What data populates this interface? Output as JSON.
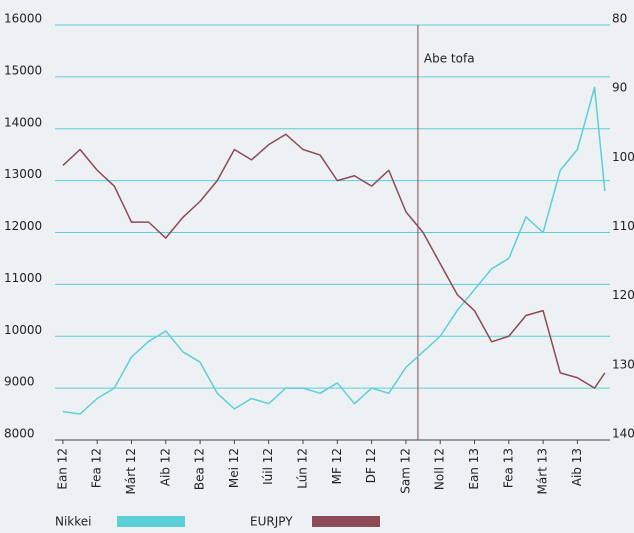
{
  "chart_data": {
    "type": "line",
    "x": [
      0,
      0.5,
      1,
      1.5,
      2,
      2.5,
      3,
      3.5,
      4,
      4.5,
      5,
      5.5,
      6,
      6.5,
      7,
      7.5,
      8,
      8.5,
      9,
      9.5,
      10,
      10.5,
      11,
      11.5,
      12,
      12.5,
      13,
      13.5,
      14,
      14.5,
      15,
      15.5,
      15.8
    ],
    "xlim": [
      -0.23,
      15.95
    ],
    "xticks": [
      {
        "value": 0,
        "label": "Ean 12"
      },
      {
        "value": 1,
        "label": "Fea 12"
      },
      {
        "value": 2,
        "label": "Márt 12"
      },
      {
        "value": 3,
        "label": "Aib 12"
      },
      {
        "value": 4,
        "label": "Bea 12"
      },
      {
        "value": 5,
        "label": "Mei 12"
      },
      {
        "value": 6,
        "label": "Iúil 12"
      },
      {
        "value": 7,
        "label": "Lún 12"
      },
      {
        "value": 8,
        "label": "MF 12"
      },
      {
        "value": 9,
        "label": "DF 12"
      },
      {
        "value": 10,
        "label": "Sam 12"
      },
      {
        "value": 11,
        "label": "Noll 12"
      },
      {
        "value": 12,
        "label": "Ean 13"
      },
      {
        "value": 13,
        "label": "Fea 13"
      },
      {
        "value": 14,
        "label": "Márt 13"
      },
      {
        "value": 15,
        "label": "Aib 13"
      }
    ],
    "ylim": [
      8000,
      16000
    ],
    "yticks": [
      8000,
      9000,
      10000,
      11000,
      12000,
      13000,
      14000,
      15000,
      16000
    ],
    "y2lim": [
      140,
      80
    ],
    "y2ticks": [
      80,
      90,
      100,
      110,
      120,
      130,
      140
    ],
    "grid": true,
    "series": [
      {
        "name": "Nikkei",
        "color": "#5ccfd8",
        "values": [
          8550,
          8500,
          8800,
          9000,
          9600,
          9900,
          10100,
          9700,
          9500,
          8900,
          8600,
          8800,
          8700,
          9000,
          9000,
          8900,
          9100,
          8700,
          9000,
          8900,
          9400,
          9700,
          10000,
          10500,
          10900,
          11300,
          11500,
          12300,
          12000,
          13200,
          13600,
          14800,
          12800
        ]
      },
      {
        "name": "EURJPY",
        "color": "#8c4b56",
        "axis": "y2",
        "values": [
          100.3,
          98,
          101,
          103.3,
          108.5,
          108.5,
          110.8,
          107.8,
          105.5,
          102.5,
          98,
          99.5,
          97.3,
          95.8,
          98,
          98.8,
          102.5,
          101.8,
          103.3,
          101,
          107,
          110,
          114.5,
          119,
          121.3,
          125.8,
          125,
          122,
          121.3,
          130.3,
          131,
          132.5,
          130.3
        ]
      }
    ],
    "annotations": [
      {
        "x": 10.35,
        "text": "Abe tofa"
      }
    ]
  }
}
